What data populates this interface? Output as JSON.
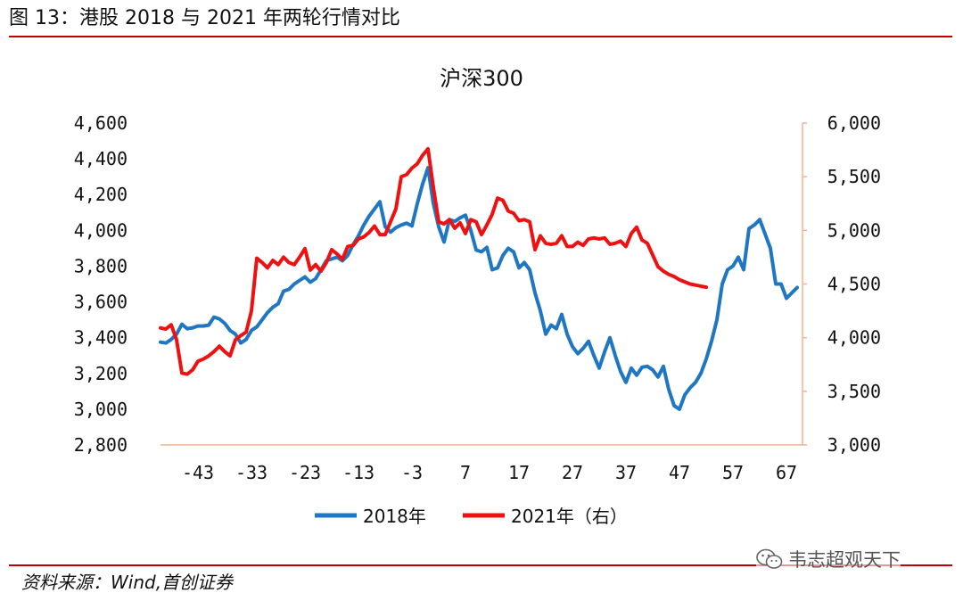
{
  "header": {
    "figure_title": "图 13：港股 2018 与 2021 年两轮行情对比"
  },
  "footer": {
    "source": "资料来源：Wind,首创证券",
    "watermark_text": "韦志超观天下",
    "watermark_icon": "wechat-icon"
  },
  "colors": {
    "rule": "#c00000",
    "series_2018": "#1f77c4",
    "series_2021": "#ee1111",
    "axis": "#f2b48e"
  },
  "chart_data": {
    "type": "line",
    "title": "沪深300",
    "x_ticks": [
      -43,
      -33,
      -23,
      -13,
      -3,
      7,
      17,
      27,
      37,
      47,
      57,
      67
    ],
    "xlim": [
      -50,
      70
    ],
    "y_left": {
      "ylim": [
        2800,
        4600
      ],
      "ticks": [
        2800,
        3000,
        3200,
        3400,
        3600,
        3800,
        4000,
        4200,
        4400,
        4600
      ],
      "tick_labels": [
        "2,800",
        "3,000",
        "3,200",
        "3,400",
        "3,600",
        "3,800",
        "4,000",
        "4,200",
        "4,400",
        "4,600"
      ]
    },
    "y_right": {
      "ylim": [
        3000,
        6000
      ],
      "ticks": [
        3000,
        3500,
        4000,
        4500,
        5000,
        5500,
        6000
      ],
      "tick_labels": [
        "3,000",
        "3,500",
        "4,000",
        "4,500",
        "5,000",
        "5,500",
        "6,000"
      ]
    },
    "legend_position": "bottom-center",
    "grid": false,
    "series": [
      {
        "name": "2018年",
        "axis": "left",
        "x": [
          -50,
          -49,
          -48,
          -47,
          -46,
          -45,
          -44,
          -43,
          -42,
          -41,
          -40,
          -39,
          -38,
          -37,
          -36,
          -35,
          -34,
          -33,
          -32,
          -31,
          -30,
          -29,
          -28,
          -27,
          -26,
          -25,
          -24,
          -23,
          -22,
          -21,
          -20,
          -19,
          -18,
          -17,
          -16,
          -15,
          -14,
          -13,
          -12,
          -11,
          -10,
          -9,
          -8,
          -7,
          -6,
          -5,
          -4,
          -3,
          -2,
          -1,
          0,
          1,
          2,
          3,
          4,
          5,
          6,
          7,
          8,
          9,
          10,
          11,
          12,
          13,
          14,
          15,
          16,
          17,
          18,
          19,
          20,
          21,
          22,
          23,
          24,
          25,
          26,
          27,
          28,
          29,
          30,
          31,
          32,
          33,
          34,
          35,
          36,
          37,
          38,
          39,
          40,
          41,
          42,
          43,
          44,
          45,
          46,
          47,
          48,
          49,
          50,
          51,
          52,
          53,
          54,
          55,
          56,
          57,
          58,
          59,
          60,
          61,
          62,
          63,
          64,
          65,
          66,
          67,
          68,
          69
        ],
        "values": [
          3375,
          3370,
          3390,
          3420,
          3475,
          3450,
          3455,
          3465,
          3465,
          3470,
          3515,
          3505,
          3480,
          3440,
          3420,
          3370,
          3390,
          3440,
          3460,
          3500,
          3540,
          3570,
          3590,
          3660,
          3670,
          3700,
          3720,
          3740,
          3710,
          3730,
          3780,
          3830,
          3840,
          3850,
          3830,
          3860,
          3920,
          3970,
          4030,
          4080,
          4120,
          4160,
          4020,
          3990,
          4015,
          4030,
          4040,
          4025,
          4150,
          4260,
          4350,
          4150,
          4020,
          3935,
          4060,
          4050,
          4070,
          4085,
          4000,
          3890,
          3880,
          3905,
          3780,
          3790,
          3860,
          3900,
          3880,
          3790,
          3820,
          3780,
          3650,
          3550,
          3420,
          3470,
          3450,
          3530,
          3420,
          3350,
          3310,
          3340,
          3380,
          3300,
          3230,
          3320,
          3400,
          3300,
          3210,
          3150,
          3230,
          3190,
          3235,
          3240,
          3220,
          3180,
          3240,
          3110,
          3020,
          3000,
          3080,
          3120,
          3150,
          3200,
          3280,
          3380,
          3500,
          3700,
          3780,
          3800,
          3850,
          3780,
          4010,
          4030,
          4060,
          3980,
          3900,
          3700,
          3700,
          3620,
          3650,
          3680
        ]
      },
      {
        "name": "2021年（右）",
        "axis": "right",
        "x": [
          -50,
          -49,
          -48,
          -47,
          -46,
          -45,
          -44,
          -43,
          -42,
          -41,
          -40,
          -39,
          -38,
          -37,
          -36,
          -35,
          -34,
          -33,
          -32,
          -31,
          -30,
          -29,
          -28,
          -27,
          -26,
          -25,
          -24,
          -23,
          -22,
          -21,
          -20,
          -19,
          -18,
          -17,
          -16,
          -15,
          -14,
          -13,
          -12,
          -11,
          -10,
          -9,
          -8,
          -7,
          -6,
          -5,
          -4,
          -3,
          -2,
          -1,
          0,
          1,
          2,
          3,
          4,
          5,
          6,
          7,
          8,
          9,
          10,
          11,
          12,
          13,
          14,
          15,
          16,
          17,
          18,
          19,
          20,
          21,
          22,
          23,
          24,
          25,
          26,
          27,
          28,
          29,
          30,
          31,
          32,
          33,
          34,
          35,
          36,
          37,
          38,
          39,
          40,
          41,
          42,
          43,
          44,
          45,
          46,
          47,
          48,
          49,
          50,
          51,
          52
        ],
        "values": [
          4090,
          4080,
          4120,
          3980,
          3670,
          3660,
          3700,
          3780,
          3800,
          3830,
          3870,
          3920,
          3870,
          3830,
          3980,
          4020,
          4050,
          4250,
          4740,
          4700,
          4650,
          4720,
          4680,
          4750,
          4700,
          4680,
          4750,
          4830,
          4630,
          4680,
          4620,
          4700,
          4820,
          4780,
          4730,
          4850,
          4860,
          4920,
          4940,
          4980,
          5040,
          4960,
          4960,
          5080,
          5200,
          5500,
          5520,
          5580,
          5620,
          5700,
          5760,
          5400,
          5080,
          5060,
          5100,
          5020,
          5070,
          4970,
          5100,
          5080,
          4960,
          5050,
          5150,
          5300,
          5280,
          5180,
          5160,
          5090,
          5100,
          5080,
          4820,
          4950,
          4880,
          4870,
          4880,
          4950,
          4850,
          4850,
          4890,
          4860,
          4920,
          4930,
          4920,
          4930,
          4870,
          4880,
          4900,
          4850,
          4970,
          5030,
          4910,
          4880,
          4770,
          4660,
          4620,
          4590,
          4570,
          4540,
          4520,
          4500,
          4490,
          4480,
          4470
        ]
      }
    ]
  }
}
